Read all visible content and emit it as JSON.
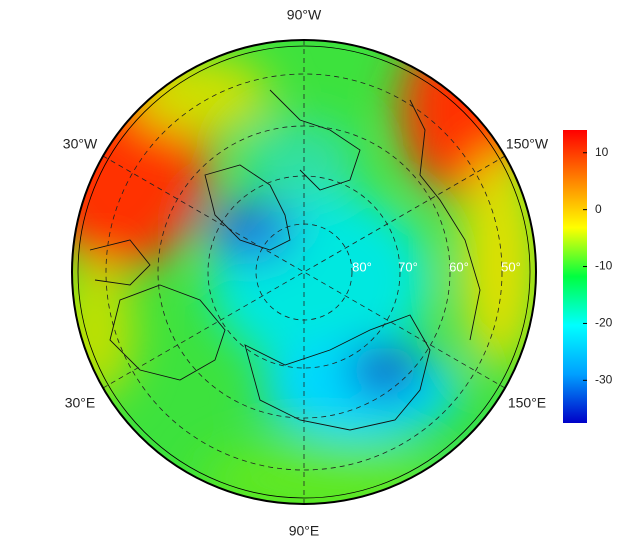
{
  "map": {
    "longitude_labels": [
      "90°W",
      "30°W",
      "150°W",
      "30°E",
      "150°E",
      "90°E"
    ],
    "latitude_labels": [
      "80°",
      "70°",
      "60°",
      "50°"
    ],
    "colorbar": {
      "lim": [
        -37.5,
        14
      ],
      "ticks": [
        10,
        0,
        -10,
        -20,
        -30
      ],
      "colors": [
        "#0000c8",
        "#00a0ff",
        "#00ffff",
        "#00ff40",
        "#ffff00",
        "#ff8000",
        "#ff0000"
      ]
    }
  }
}
